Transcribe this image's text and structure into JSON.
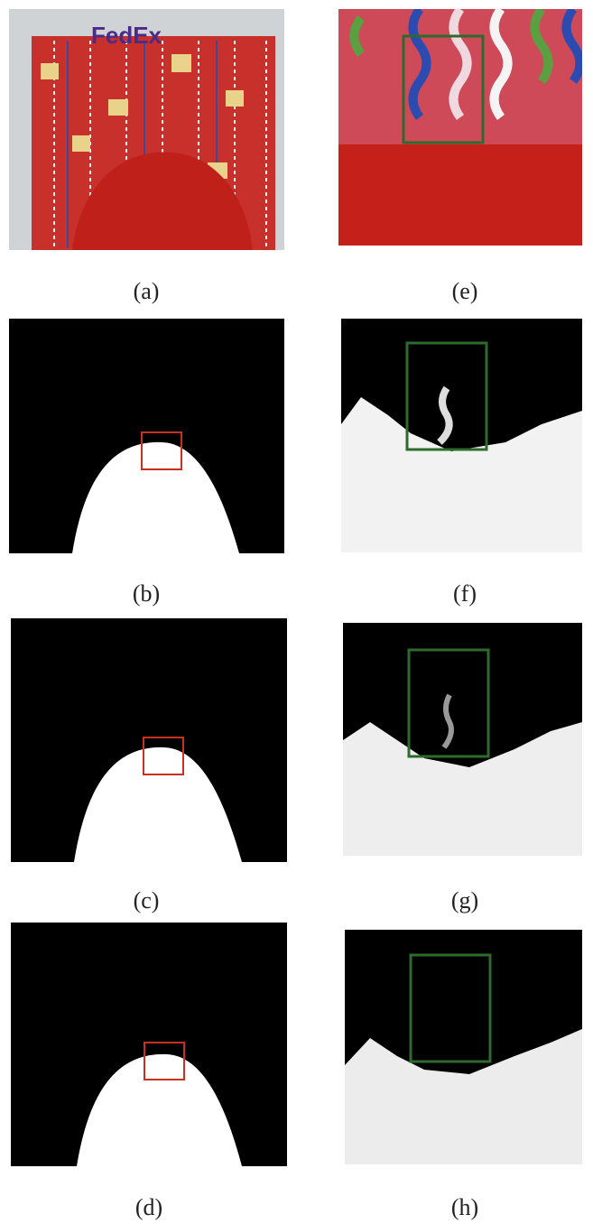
{
  "panels": [
    {
      "label": "(a)",
      "logo_text": "FedEx"
    },
    {
      "label": "(b)"
    },
    {
      "label": "(c)"
    },
    {
      "label": "(d)"
    },
    {
      "label": "(e)"
    },
    {
      "label": "(f)"
    },
    {
      "label": "(g)"
    },
    {
      "label": "(h)"
    }
  ]
}
